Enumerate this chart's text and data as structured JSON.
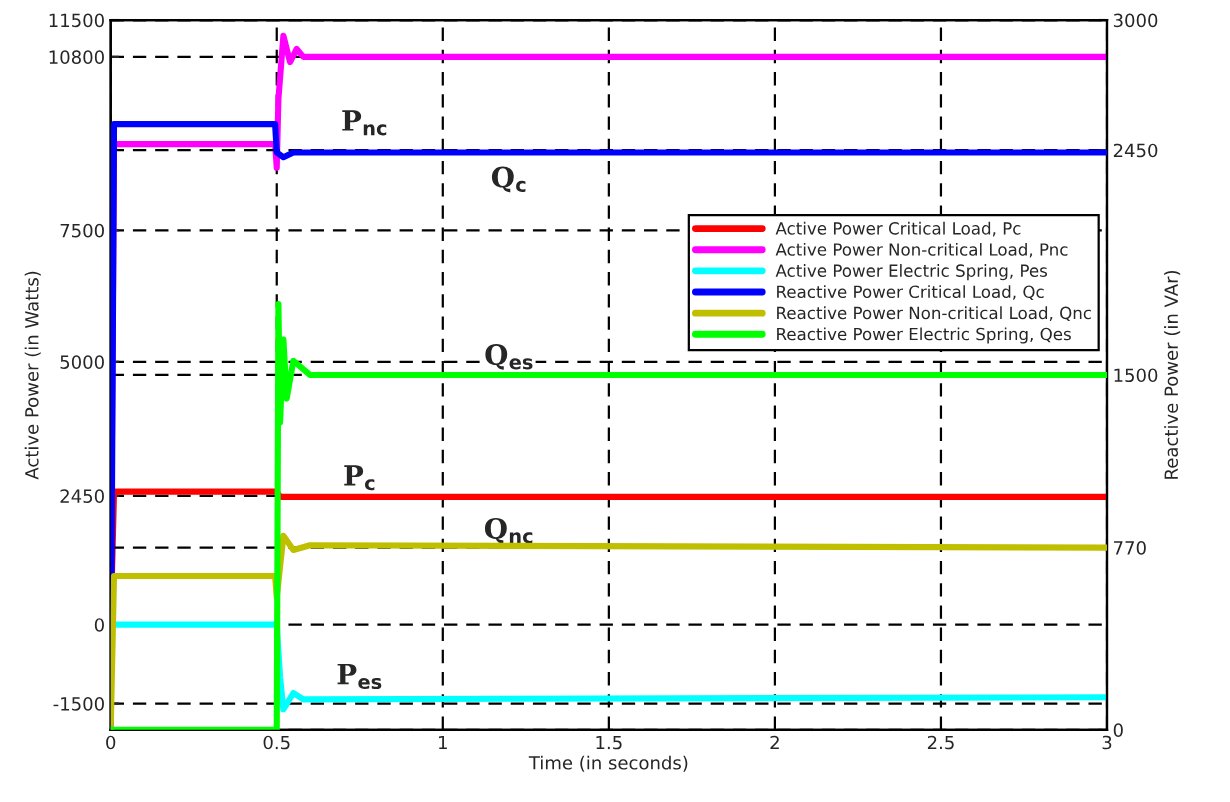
{
  "chart_data": {
    "type": "line",
    "xlabel": "Time (in seconds)",
    "ylabel": "Active Power (in Watts)",
    "y2label": "Reactive Power (in VAr)",
    "xlim": [
      0,
      3
    ],
    "xticks": [
      0,
      0.5,
      1,
      1.5,
      2,
      2.5,
      3
    ],
    "ylim": [
      -2000,
      11500
    ],
    "yticks": [
      -1500,
      0,
      2450,
      5000,
      7500,
      10800,
      11500
    ],
    "y2lim": [
      0,
      3000
    ],
    "y2ticks": [
      0,
      770,
      1500,
      2450,
      3000
    ],
    "grid": true,
    "legend": "right",
    "series": [
      {
        "name": "Active Power Critical Load, Pc",
        "color": "#ff0000",
        "x": [
          0,
          0.01,
          0.5,
          0.51,
          3
        ],
        "values": [
          0,
          2530,
          2530,
          2430,
          2430
        ]
      },
      {
        "name": "Active Power Non-critical Load, Pnc",
        "color": "#ff00ff",
        "x": [
          0,
          0.01,
          0.495,
          0.5,
          0.505,
          0.52,
          0.54,
          0.56,
          0.58,
          3
        ],
        "values": [
          0,
          9140,
          9140,
          8690,
          10000,
          11200,
          10700,
          10950,
          10800,
          10800
        ]
      },
      {
        "name": "Active Power Electric Spring, Pes",
        "color": "#00ffff",
        "x": [
          0,
          0.5,
          0.51,
          0.52,
          0.55,
          0.58,
          3
        ],
        "values": [
          0,
          0,
          -1000,
          -1610,
          -1300,
          -1420,
          -1380
        ]
      },
      {
        "name": "Reactive Power Critical Load, Qc",
        "color": "#0000ff",
        "axis": "y2",
        "x": [
          0,
          0.01,
          0.495,
          0.5,
          0.52,
          0.55,
          3
        ],
        "values": [
          0,
          2560,
          2560,
          2440,
          2420,
          2440,
          2440
        ]
      },
      {
        "name": "Reactive Power Non-critical Load, Qnc",
        "color": "#bfbf00",
        "axis": "y2",
        "x": [
          0,
          0.01,
          0.495,
          0.5,
          0.52,
          0.55,
          0.6,
          3
        ],
        "values": [
          0,
          650,
          650,
          560,
          820,
          760,
          780,
          770
        ]
      },
      {
        "name": "Reactive Power Electric Spring, Qes",
        "color": "#00ff00",
        "axis": "y2",
        "x": [
          0,
          0.495,
          0.5,
          0.505,
          0.51,
          0.52,
          0.53,
          0.55,
          0.6,
          3
        ],
        "values": [
          0,
          0,
          0,
          1800,
          1300,
          1650,
          1400,
          1560,
          1500,
          1500
        ]
      }
    ],
    "annotations": [
      "P$_{nc}$",
      "Q$_{c}$",
      "Q$_{es}$",
      "P$_{c}$",
      "Q$_{nc}$",
      "P$_{es}$"
    ]
  }
}
